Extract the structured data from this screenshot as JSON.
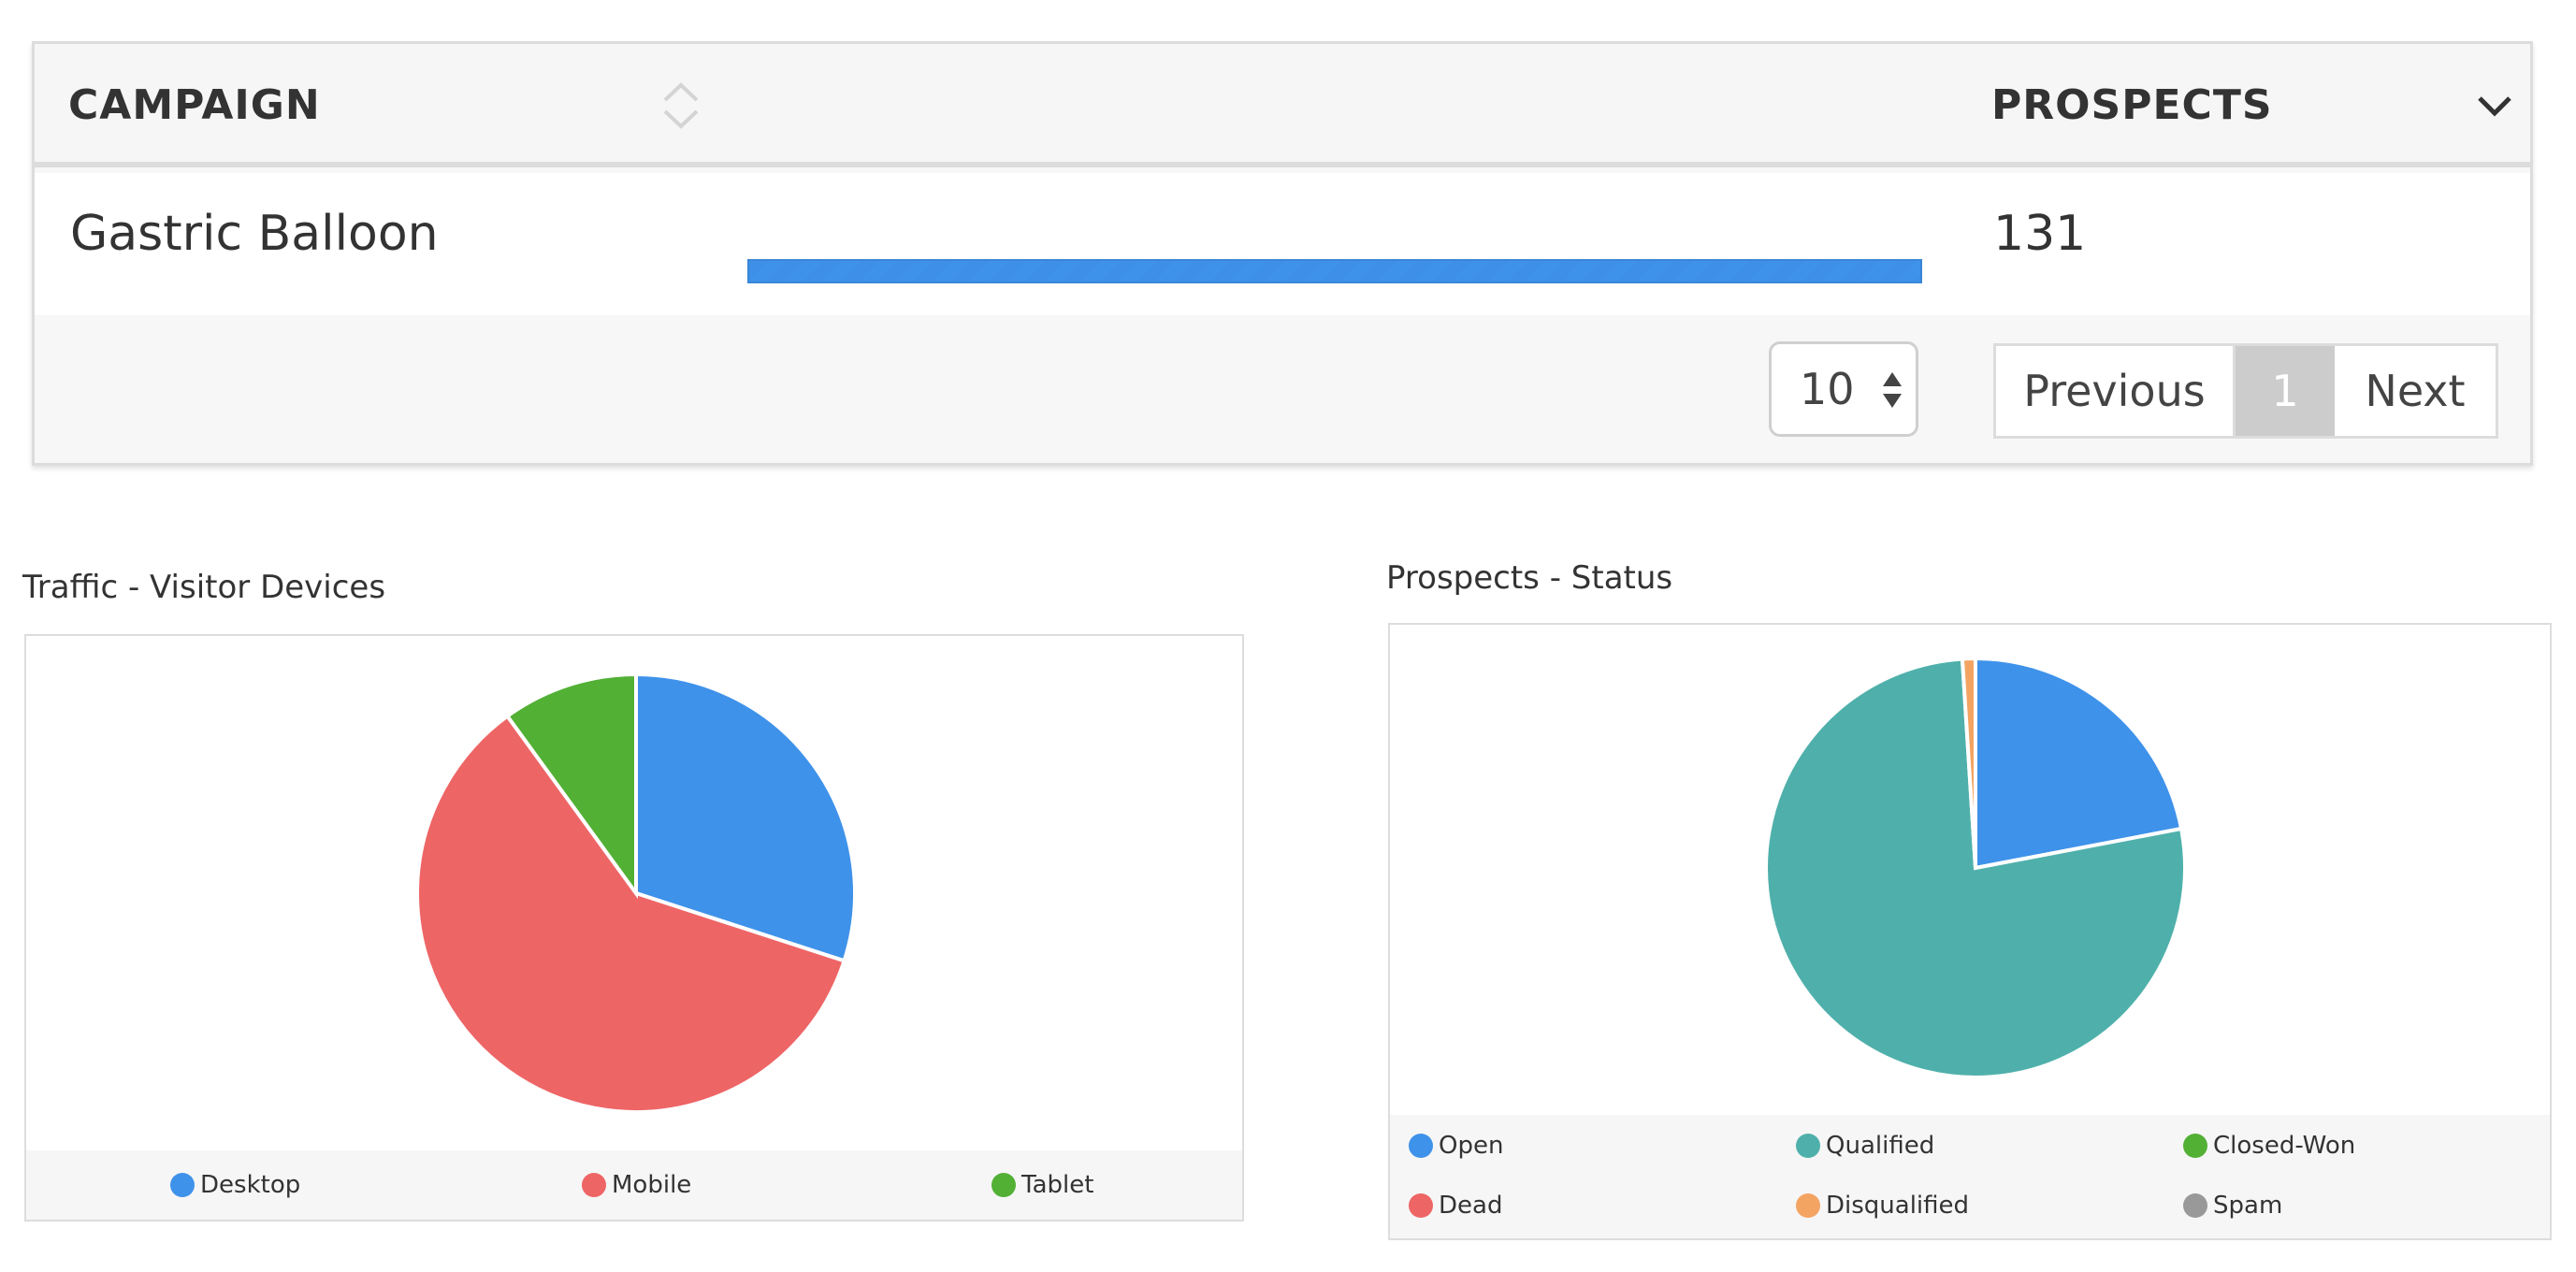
{
  "table": {
    "header_campaign": "CAMPAIGN",
    "header_prospects": "PROSPECTS",
    "rows": [
      {
        "campaign": "Gastric Balloon",
        "prospects": "131",
        "bar_fraction": 1.0
      }
    ],
    "page_size": "10",
    "pagination": {
      "previous": "Previous",
      "current": "1",
      "next": "Next"
    },
    "bar_color": "#3d8fe8"
  },
  "traffic_chart": {
    "title": "Traffic - Visitor Devices",
    "chart_data": {
      "type": "pie",
      "slices": [
        {
          "label": "Desktop",
          "value": 30,
          "color": "#3f92ea"
        },
        {
          "label": "Mobile",
          "value": 60,
          "color": "#ee6566"
        },
        {
          "label": "Tablet",
          "value": 10,
          "color": "#52b035"
        }
      ]
    },
    "legend": [
      {
        "label": "Desktop",
        "color": "#3f92ea"
      },
      {
        "label": "Mobile",
        "color": "#ee6566"
      },
      {
        "label": "Tablet",
        "color": "#52b035"
      }
    ]
  },
  "status_chart": {
    "title": "Prospects - Status",
    "chart_data": {
      "type": "pie",
      "slices": [
        {
          "label": "Open",
          "value": 22,
          "color": "#3f92ea"
        },
        {
          "label": "Qualified",
          "value": 77,
          "color": "#4fb0ab"
        },
        {
          "label": "Disqualified",
          "value": 1,
          "color": "#f4a462"
        }
      ]
    },
    "legend": [
      {
        "label": "Open",
        "color": "#3f92ea"
      },
      {
        "label": "Qualified",
        "color": "#4fb0ab"
      },
      {
        "label": "Closed-Won",
        "color": "#52b035"
      },
      {
        "label": "Dead",
        "color": "#ee6566"
      },
      {
        "label": "Disqualified",
        "color": "#f4a462"
      },
      {
        "label": "Spam",
        "color": "#999999"
      }
    ]
  }
}
